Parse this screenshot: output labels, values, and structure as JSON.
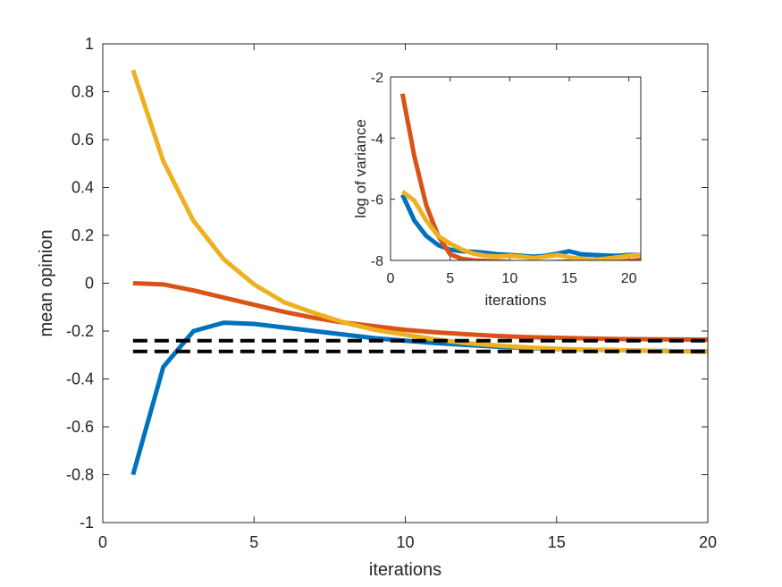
{
  "chart_data": [
    {
      "type": "line",
      "xlabel": "iterations",
      "ylabel": "mean opinion",
      "xlim": [
        0,
        20
      ],
      "ylim": [
        -1,
        1
      ],
      "xticks": [
        0,
        5,
        10,
        15,
        20
      ],
      "yticks": [
        -1,
        -0.8,
        -0.6,
        -0.4,
        -0.2,
        0,
        0.2,
        0.4,
        0.6,
        0.8,
        1
      ],
      "xtick_labels": [
        "0",
        "5",
        "10",
        "15",
        "20"
      ],
      "ytick_labels": [
        "-1",
        "-0.8",
        "-0.6",
        "-0.4",
        "-0.2",
        "0",
        "0.2",
        "0.4",
        "0.6",
        "0.8",
        "1"
      ],
      "series": [
        {
          "name": "blue",
          "color": "#0072BD",
          "x": [
            1,
            2,
            3,
            4,
            5,
            6,
            7,
            8,
            9,
            10,
            11,
            12,
            13,
            14,
            15,
            16,
            17,
            18,
            19,
            20
          ],
          "values": [
            -0.8,
            -0.35,
            -0.2,
            -0.165,
            -0.17,
            -0.185,
            -0.2,
            -0.215,
            -0.23,
            -0.24,
            -0.25,
            -0.258,
            -0.265,
            -0.27,
            -0.275,
            -0.278,
            -0.28,
            -0.282,
            -0.284,
            -0.285
          ]
        },
        {
          "name": "red",
          "color": "#D95319",
          "x": [
            1,
            2,
            3,
            4,
            5,
            6,
            7,
            8,
            9,
            10,
            11,
            12,
            13,
            14,
            15,
            16,
            17,
            18,
            19,
            20
          ],
          "values": [
            0,
            -0.005,
            -0.03,
            -0.06,
            -0.09,
            -0.12,
            -0.145,
            -0.165,
            -0.18,
            -0.195,
            -0.205,
            -0.213,
            -0.22,
            -0.225,
            -0.228,
            -0.231,
            -0.233,
            -0.234,
            -0.235,
            -0.236
          ]
        },
        {
          "name": "yellow",
          "color": "#EDB120",
          "x": [
            1,
            2,
            3,
            4,
            5,
            6,
            7,
            8,
            9,
            10,
            11,
            12,
            13,
            14,
            15,
            16,
            17,
            18,
            19,
            20
          ],
          "values": [
            0.89,
            0.51,
            0.26,
            0.1,
            -0.005,
            -0.08,
            -0.125,
            -0.165,
            -0.195,
            -0.215,
            -0.235,
            -0.25,
            -0.26,
            -0.268,
            -0.274,
            -0.278,
            -0.28,
            -0.282,
            -0.284,
            -0.285
          ]
        }
      ],
      "reference_lines": [
        {
          "name": "dashed-upper",
          "color": "#000000",
          "y": -0.24,
          "x_range": [
            1,
            20
          ]
        },
        {
          "name": "dashed-lower",
          "color": "#000000",
          "y": -0.285,
          "x_range": [
            1,
            20
          ]
        }
      ]
    },
    {
      "type": "line",
      "role": "inset",
      "xlabel": "iterations",
      "ylabel": "log of variance",
      "xlim": [
        0,
        21
      ],
      "ylim": [
        -8,
        -2
      ],
      "xticks": [
        0,
        5,
        10,
        15,
        20
      ],
      "yticks": [
        -8,
        -6,
        -4,
        -2
      ],
      "xtick_labels": [
        "0",
        "5",
        "10",
        "15",
        "20"
      ],
      "ytick_labels": [
        "-8",
        "-6",
        "-4",
        "-2"
      ],
      "series": [
        {
          "name": "blue",
          "color": "#0072BD",
          "x": [
            1,
            2,
            3,
            4,
            5,
            6,
            7,
            8,
            9,
            10,
            11,
            12,
            13,
            14,
            15,
            16,
            17,
            18,
            19,
            20,
            21
          ],
          "values": [
            -5.85,
            -6.7,
            -7.2,
            -7.5,
            -7.65,
            -7.7,
            -7.72,
            -7.75,
            -7.8,
            -7.82,
            -7.85,
            -7.88,
            -7.85,
            -7.78,
            -7.7,
            -7.8,
            -7.82,
            -7.84,
            -7.85,
            -7.82,
            -7.82
          ]
        },
        {
          "name": "red",
          "color": "#D95319",
          "x": [
            1,
            2,
            3,
            4,
            5,
            6,
            7,
            8,
            9,
            10,
            11,
            12,
            13,
            14,
            15,
            16,
            17,
            18,
            19,
            20,
            21
          ],
          "values": [
            -2.55,
            -4.6,
            -6.2,
            -7.2,
            -7.8,
            -7.95,
            -8.0,
            -8.02,
            -8.03,
            -8.05,
            -8.07,
            -8.08,
            -8.06,
            -8.05,
            -8.04,
            -8.03,
            -8.05,
            -8.06,
            -8.05,
            -8.02,
            -7.98
          ]
        },
        {
          "name": "yellow",
          "color": "#EDB120",
          "x": [
            1,
            2,
            3,
            4,
            5,
            6,
            7,
            8,
            9,
            10,
            11,
            12,
            13,
            14,
            15,
            16,
            17,
            18,
            19,
            20,
            21
          ],
          "values": [
            -5.75,
            -6.05,
            -6.7,
            -7.2,
            -7.45,
            -7.65,
            -7.78,
            -7.85,
            -7.87,
            -7.85,
            -7.88,
            -7.92,
            -7.88,
            -7.82,
            -7.9,
            -7.95,
            -7.98,
            -7.95,
            -7.9,
            -7.85,
            -7.82
          ]
        }
      ]
    }
  ]
}
